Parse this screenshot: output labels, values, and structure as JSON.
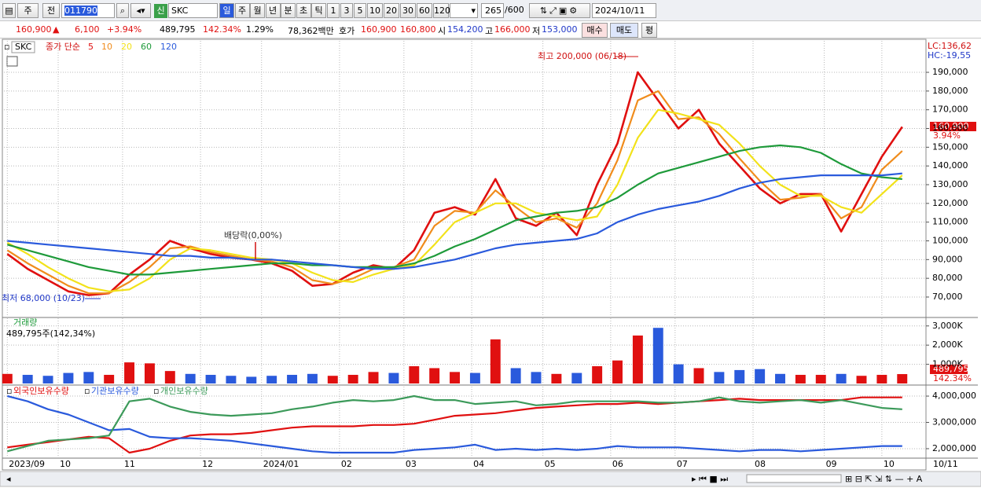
{
  "toolbar": {
    "period_type": "주",
    "prev": "전",
    "code": "011790",
    "badge": "신",
    "name": "SKC",
    "periods": [
      "일",
      "주",
      "월",
      "년",
      "분",
      "초",
      "틱"
    ],
    "intervals": [
      "1",
      "3",
      "5",
      "10",
      "20",
      "30",
      "60",
      "120"
    ],
    "count": "265",
    "count_max": "/600",
    "date": "2024/10/11"
  },
  "info_bar": {
    "price": "160,900",
    "change_sign": "▲",
    "change": "6,100",
    "change_rate": "+3.94%",
    "volume": "489,795",
    "volume_rate": "142.34%",
    "turnover": "1.29%",
    "amount": "78,362백만",
    "quote_label": "호가",
    "ask": "160,900",
    "bid": "160,800",
    "open_label": "시",
    "open": "154,200",
    "high_label": "고",
    "high": "166,000",
    "low_label": "저",
    "low": "153,000",
    "buy": "매수",
    "sell": "매도",
    "avg": "평"
  },
  "chart_data": [
    {
      "type": "line",
      "name": "SKC",
      "method": "종가 단순",
      "x": [
        0,
        6,
        12,
        18,
        24,
        30,
        36,
        42,
        48,
        54,
        60,
        66,
        72,
        78,
        84,
        90,
        96,
        102,
        108,
        114,
        120,
        126,
        132,
        138,
        144,
        150,
        156,
        162,
        168,
        174,
        180,
        186,
        192,
        198,
        204,
        210,
        216,
        222,
        228,
        234,
        240,
        246,
        252,
        258,
        264
      ],
      "xlim": [
        -1,
        268
      ],
      "ylim": [
        59500,
        206800
      ],
      "yticks": [
        {
          "value": 70000,
          "label": "70,000"
        },
        {
          "value": 80000,
          "label": "80,000"
        },
        {
          "value": 90000,
          "label": "90,000"
        },
        {
          "value": 100000,
          "label": "100,000"
        },
        {
          "value": 110000,
          "label": "110,000"
        },
        {
          "value": 120000,
          "label": "120,000"
        },
        {
          "value": 130000,
          "label": "130,000"
        },
        {
          "value": 140000,
          "label": "140,000"
        },
        {
          "value": 150000,
          "label": "150,000"
        },
        {
          "value": 160000,
          "label": "160,000"
        },
        {
          "value": 170000,
          "label": "170,000"
        },
        {
          "value": 180000,
          "label": "180,000"
        },
        {
          "value": 190000,
          "label": "190,000"
        }
      ],
      "xticks": [
        {
          "value": 0,
          "label": "2023/09"
        },
        {
          "value": 15,
          "label": "10"
        },
        {
          "value": 34,
          "label": "11"
        },
        {
          "value": 57,
          "label": "12"
        },
        {
          "value": 75,
          "label": "2024/01"
        },
        {
          "value": 98,
          "label": "02"
        },
        {
          "value": 117,
          "label": "03"
        },
        {
          "value": 137,
          "label": "04"
        },
        {
          "value": 158,
          "label": "05"
        },
        {
          "value": 178,
          "label": "06"
        },
        {
          "value": 197,
          "label": "07"
        },
        {
          "value": 220,
          "label": "08"
        },
        {
          "value": 241,
          "label": "09"
        },
        {
          "value": 258,
          "label": "10"
        }
      ],
      "grid": true,
      "series": [
        {
          "name": "5",
          "color": "#e01010",
          "values": [
            93000,
            85000,
            79000,
            73000,
            71000,
            72000,
            82000,
            90000,
            100000,
            96000,
            93000,
            91000,
            90000,
            88000,
            84000,
            76000,
            77000,
            83000,
            87000,
            85000,
            95000,
            115000,
            118000,
            114000,
            133000,
            112000,
            108000,
            115000,
            103000,
            130000,
            152000,
            190000,
            175000,
            160000,
            170000,
            152000,
            140000,
            128000,
            120000,
            125000,
            125000,
            105000,
            125000,
            145000,
            160900
          ]
        },
        {
          "name": "10",
          "color": "#f08c1c",
          "values": [
            95000,
            88000,
            82000,
            76000,
            72000,
            72000,
            78000,
            86000,
            96000,
            97000,
            94000,
            92000,
            90000,
            89000,
            86000,
            79000,
            77000,
            80000,
            85000,
            86000,
            90000,
            108000,
            116000,
            115000,
            127000,
            118000,
            110000,
            112000,
            107000,
            120000,
            143000,
            175000,
            180000,
            165000,
            166000,
            157000,
            144000,
            132000,
            122000,
            123000,
            125000,
            112000,
            118000,
            138000,
            148000
          ]
        },
        {
          "name": "20",
          "color": "#f2e21a",
          "values": [
            99000,
            93000,
            86000,
            80000,
            75000,
            73000,
            74000,
            80000,
            90000,
            96000,
            95000,
            93000,
            91000,
            90000,
            88000,
            83000,
            79000,
            78000,
            82000,
            85000,
            87000,
            98000,
            110000,
            115000,
            120000,
            120000,
            115000,
            113000,
            111000,
            113000,
            130000,
            155000,
            170000,
            168000,
            165000,
            162000,
            152000,
            140000,
            130000,
            124000,
            124000,
            118000,
            115000,
            125000,
            135000
          ]
        },
        {
          "name": "60",
          "color": "#1e9a3a",
          "values": [
            98000,
            95000,
            92000,
            89000,
            86000,
            84000,
            82000,
            82000,
            83000,
            84000,
            85000,
            86000,
            87000,
            88000,
            88000,
            87000,
            87000,
            86000,
            86000,
            86000,
            88000,
            92000,
            97000,
            101000,
            106000,
            111000,
            113000,
            115000,
            116000,
            118000,
            123000,
            130000,
            136000,
            139000,
            142000,
            145000,
            148000,
            150000,
            151000,
            150000,
            147000,
            141000,
            136000,
            134000,
            133000
          ]
        },
        {
          "name": "120",
          "color": "#2a5adc",
          "values": [
            100000,
            99000,
            98000,
            97000,
            96000,
            95000,
            94000,
            93000,
            92000,
            92000,
            91000,
            91000,
            90000,
            90000,
            89000,
            88000,
            87000,
            86000,
            85000,
            85000,
            86000,
            88000,
            90000,
            93000,
            96000,
            98000,
            99000,
            100000,
            101000,
            104000,
            110000,
            114000,
            117000,
            119000,
            121000,
            124000,
            128000,
            131000,
            133000,
            134000,
            135000,
            135000,
            135000,
            135000,
            136000
          ]
        }
      ],
      "annotations": [
        "최고 200,000 (06/18)",
        "최저 68,000 (10/23)",
        "배당락(0,00%)"
      ],
      "right_labels": [
        "LC:136,62",
        "HC:-19,55"
      ],
      "last_tag": "160,900",
      "last_rate": "3.94%"
    },
    {
      "type": "bar",
      "title": "거래량",
      "subtitle": "489,795주(142,34%)",
      "x": [
        0,
        6,
        12,
        18,
        24,
        30,
        36,
        42,
        48,
        54,
        60,
        66,
        72,
        78,
        84,
        90,
        96,
        102,
        108,
        114,
        120,
        126,
        132,
        138,
        144,
        150,
        156,
        162,
        168,
        174,
        180,
        186,
        192,
        198,
        204,
        210,
        216,
        222,
        228,
        234,
        240,
        246,
        252,
        258,
        264
      ],
      "xlim": [
        -1,
        268
      ],
      "ylim": [
        0,
        3400000
      ],
      "yticks": [
        {
          "value": 1000000,
          "label": "1,000K"
        },
        {
          "value": 2000000,
          "label": "2,000K"
        },
        {
          "value": 3000000,
          "label": "3,000K"
        }
      ],
      "up_color": "#e01010",
      "down_color": "#2a5adc",
      "values": [
        500000,
        450000,
        400000,
        550000,
        600000,
        450000,
        1100000,
        1050000,
        650000,
        500000,
        450000,
        400000,
        350000,
        400000,
        450000,
        500000,
        400000,
        450000,
        600000,
        550000,
        900000,
        800000,
        600000,
        550000,
        2300000,
        800000,
        600000,
        500000,
        550000,
        900000,
        1200000,
        2500000,
        2900000,
        1000000,
        800000,
        600000,
        700000,
        750000,
        500000,
        450000,
        450000,
        500000,
        400000,
        450000,
        489795
      ],
      "last_tag": "489,795",
      "last_rate": "142.34%"
    },
    {
      "type": "line",
      "x": [
        0,
        6,
        12,
        18,
        24,
        30,
        36,
        42,
        48,
        54,
        60,
        66,
        72,
        78,
        84,
        90,
        96,
        102,
        108,
        114,
        120,
        126,
        132,
        138,
        144,
        150,
        156,
        162,
        168,
        174,
        180,
        186,
        192,
        198,
        204,
        210,
        216,
        222,
        228,
        234,
        240,
        246,
        252,
        258,
        264
      ],
      "xlim": [
        -1,
        268
      ],
      "ylim": [
        1640000,
        4360000
      ],
      "yticks": [
        {
          "value": 2000000,
          "label": "2,000,000"
        },
        {
          "value": 3000000,
          "label": "3,000,000"
        },
        {
          "value": 4000000,
          "label": "4,000,000"
        }
      ],
      "series": [
        {
          "name": "외국인보유수량",
          "color": "#e01010",
          "values": [
            2050000,
            2150000,
            2250000,
            2350000,
            2450000,
            2400000,
            1850000,
            2000000,
            2300000,
            2500000,
            2550000,
            2550000,
            2600000,
            2700000,
            2800000,
            2850000,
            2850000,
            2850000,
            2900000,
            2900000,
            2950000,
            3100000,
            3250000,
            3300000,
            3350000,
            3450000,
            3550000,
            3600000,
            3650000,
            3700000,
            3700000,
            3750000,
            3700000,
            3750000,
            3800000,
            3850000,
            3900000,
            3850000,
            3850000,
            3850000,
            3850000,
            3850000,
            3950000,
            3950000,
            3950000
          ]
        },
        {
          "name": "기관보유수량",
          "color": "#2a5adc",
          "values": [
            4000000,
            3800000,
            3500000,
            3300000,
            3000000,
            2700000,
            2750000,
            2450000,
            2400000,
            2400000,
            2350000,
            2300000,
            2200000,
            2100000,
            2000000,
            1900000,
            1850000,
            1850000,
            1850000,
            1850000,
            1950000,
            2000000,
            2050000,
            2150000,
            1950000,
            2000000,
            1950000,
            2000000,
            1950000,
            2000000,
            2100000,
            2050000,
            2050000,
            2050000,
            2000000,
            1950000,
            1900000,
            1950000,
            1950000,
            1900000,
            1950000,
            2000000,
            2050000,
            2100000,
            2100000
          ]
        },
        {
          "name": "개인보유수량",
          "color": "#3c9a5a",
          "values": [
            1900000,
            2100000,
            2300000,
            2350000,
            2400000,
            2500000,
            3800000,
            3900000,
            3600000,
            3400000,
            3300000,
            3250000,
            3300000,
            3350000,
            3500000,
            3600000,
            3750000,
            3850000,
            3800000,
            3850000,
            4000000,
            3850000,
            3850000,
            3700000,
            3750000,
            3800000,
            3650000,
            3700000,
            3800000,
            3800000,
            3800000,
            3800000,
            3750000,
            3750000,
            3800000,
            3950000,
            3800000,
            3750000,
            3800000,
            3850000,
            3750000,
            3850000,
            3700000,
            3550000,
            3500000
          ]
        }
      ],
      "end_label": "10/11"
    }
  ]
}
